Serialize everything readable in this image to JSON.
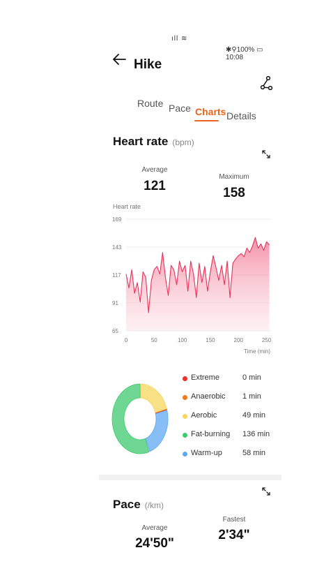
{
  "status_bar": {
    "signal_icons": "ıll ≋",
    "right_text": "✱⚲100% ▭ 10:08"
  },
  "header": {
    "title": "Hike",
    "back_icon": "arrow-left-icon",
    "share_icon": "share-icon"
  },
  "tabs": [
    {
      "label": "Route",
      "active": false
    },
    {
      "label": "Pace",
      "active": false
    },
    {
      "label": "Charts",
      "active": true
    },
    {
      "label": "Details",
      "active": false
    }
  ],
  "heart_rate": {
    "title": "Heart rate",
    "unit": "(bpm)",
    "average_label": "Average",
    "average_value": "121",
    "maximum_label": "Maximum",
    "maximum_value": "158",
    "chart_ylabel": "Heart rate",
    "chart_xlabel": "Time (min)"
  },
  "zones": [
    {
      "name": "Extreme",
      "value": "0 min",
      "minutes": 0,
      "color": "#e8322c"
    },
    {
      "name": "Anaerobic",
      "value": "1 min",
      "minutes": 1,
      "color": "#f07a1a"
    },
    {
      "name": "Aerobic",
      "value": "49 min",
      "minutes": 49,
      "color": "#f6d55c"
    },
    {
      "name": "Fat-burning",
      "value": "136 min",
      "minutes": 136,
      "color": "#3ec96f"
    },
    {
      "name": "Warm-up",
      "value": "58 min",
      "minutes": 58,
      "color": "#5ea8f2"
    }
  ],
  "pace": {
    "title": "Pace",
    "unit": "(/km)",
    "average_label": "Average",
    "average_value": "24'50\"",
    "fastest_label": "Fastest",
    "fastest_value": "2'34\""
  },
  "chart_data": {
    "type": "area",
    "ylabel": "Heart rate",
    "xlabel": "Time (min)",
    "yticks": [
      65,
      91,
      117,
      143,
      169
    ],
    "xticks": [
      0,
      50,
      100,
      150,
      200,
      250
    ],
    "ylim": [
      65,
      169
    ],
    "xlim": [
      0,
      258
    ],
    "color": "#e8335a",
    "x": [
      0,
      5,
      10,
      15,
      20,
      25,
      30,
      35,
      40,
      45,
      50,
      55,
      60,
      65,
      70,
      75,
      80,
      85,
      90,
      95,
      100,
      105,
      110,
      115,
      120,
      125,
      130,
      135,
      140,
      145,
      150,
      155,
      160,
      165,
      170,
      175,
      180,
      185,
      190,
      195,
      200,
      205,
      210,
      215,
      220,
      225,
      230,
      235,
      240,
      245,
      250,
      255
    ],
    "y": [
      118,
      105,
      122,
      100,
      110,
      92,
      120,
      115,
      82,
      112,
      122,
      125,
      118,
      138,
      115,
      98,
      126,
      122,
      108,
      130,
      120,
      126,
      102,
      130,
      118,
      96,
      128,
      110,
      125,
      102,
      120,
      135,
      124,
      112,
      126,
      108,
      130,
      96,
      128,
      132,
      135,
      137,
      134,
      142,
      138,
      144,
      152,
      142,
      146,
      140,
      148,
      145
    ]
  }
}
